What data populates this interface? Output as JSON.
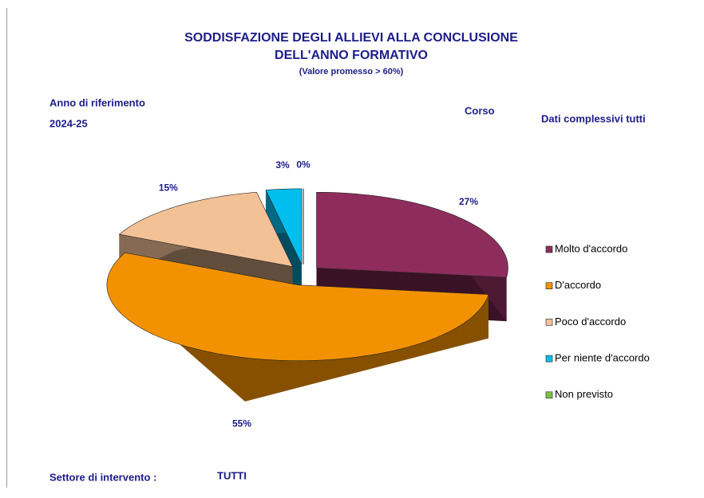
{
  "chart_data": {
    "type": "pie3d",
    "title": [
      "SODDISFAZIONE DEGLI ALLIEVI ALLA CONCLUSIONE",
      "DELL'ANNO FORMATIVO"
    ],
    "subtitle": "(Valore promesso  > 60%)",
    "info": {
      "year_label": "Anno di riferimento",
      "year": "2024-25",
      "course_label": "Corso",
      "course": "Dati complessivi tutti",
      "sector_label": "Settore di intervento :",
      "sector": "TUTTI"
    },
    "categories": [
      "Molto d'accordo",
      "D'accordo",
      "Poco d'accordo",
      "Per niente d'accordo",
      "Non previsto"
    ],
    "values": [
      27,
      55,
      15,
      3,
      0
    ],
    "value_labels": [
      "27%",
      "55%",
      "15%",
      "3%",
      "0%"
    ],
    "colors": [
      "#8e2d5c",
      "#f39200",
      "#f3c196",
      "#00bfee",
      "#7cc242"
    ],
    "legend": "right"
  }
}
